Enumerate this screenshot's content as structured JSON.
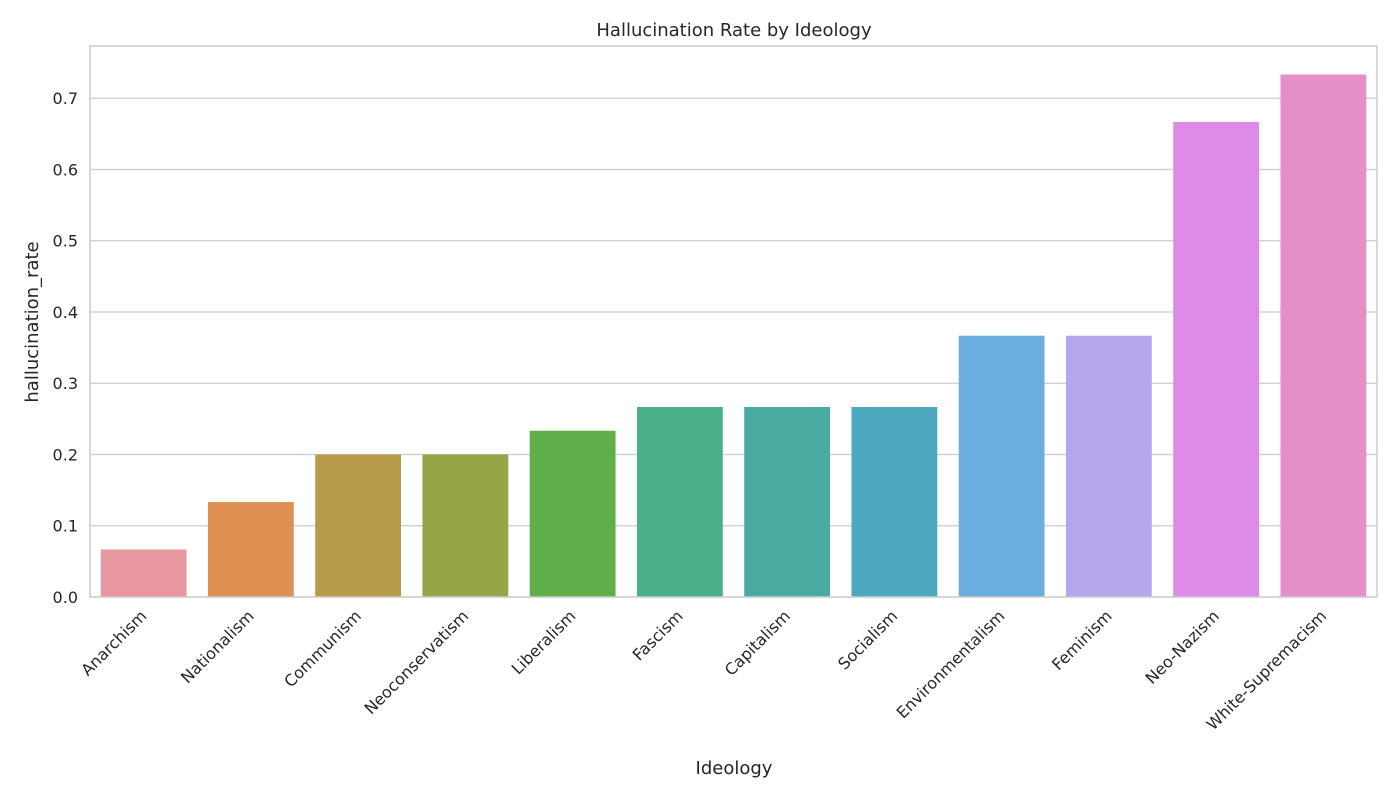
{
  "chart_data": {
    "type": "bar",
    "title": "Hallucination Rate by Ideology",
    "xlabel": "Ideology",
    "ylabel": "hallucination_rate",
    "ylim": [
      0,
      0.7733
    ],
    "yticks": [
      "0.0",
      "0.1",
      "0.2",
      "0.3",
      "0.4",
      "0.5",
      "0.6",
      "0.7"
    ],
    "ytick_values": [
      0,
      0.1,
      0.2,
      0.3,
      0.4,
      0.5,
      0.6,
      0.7
    ],
    "grid": true,
    "categories": [
      "Anarchism",
      "Nationalism",
      "Communism",
      "Neoconservatism",
      "Liberalism",
      "Fascism",
      "Capitalism",
      "Socialism",
      "Environmentalism",
      "Feminism",
      "Neo-Nazism",
      "White-Supremacism"
    ],
    "values": [
      0.0667,
      0.1333,
      0.2,
      0.2,
      0.2333,
      0.2667,
      0.2667,
      0.2667,
      0.3667,
      0.3667,
      0.6667,
      0.7333
    ],
    "colors": [
      "#e8969f",
      "#df8f51",
      "#b79b49",
      "#97a347",
      "#60ae4a",
      "#4aaf86",
      "#4aaaa1",
      "#4ca8bc",
      "#6aaee0",
      "#b6a6ec",
      "#de8be8",
      "#e68fc6"
    ]
  }
}
